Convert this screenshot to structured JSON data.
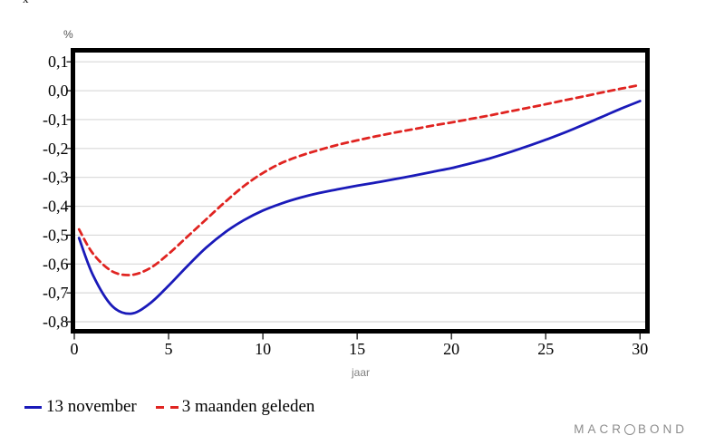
{
  "page": {
    "background": "#ffffff",
    "top_glyph": "x"
  },
  "chart_data": {
    "type": "line",
    "title": "",
    "ylabel_unit": "%",
    "xlabel": "jaar",
    "grid": true,
    "legend_position": "bottom-left",
    "xlim": [
      0,
      30.3
    ],
    "ylim": [
      -0.825,
      0.132
    ],
    "x_ticks": [
      0,
      5,
      10,
      15,
      20,
      25,
      30
    ],
    "y_ticks": [
      "0,1",
      "0,0",
      "-0,1",
      "-0,2",
      "-0,3",
      "-0,4",
      "-0,5",
      "-0,6",
      "-0,7",
      "-0,8"
    ],
    "y_tick_values": [
      0.1,
      0.0,
      -0.1,
      -0.2,
      -0.3,
      -0.4,
      -0.5,
      -0.6,
      -0.7,
      -0.8
    ],
    "x": [
      0.25,
      1,
      2,
      3,
      4,
      5,
      6,
      7,
      8,
      9,
      10,
      11,
      12,
      13,
      14,
      15,
      16,
      17,
      18,
      19,
      20,
      21,
      22,
      23,
      24,
      25,
      26,
      27,
      28,
      29,
      30
    ],
    "series": [
      {
        "name": "13 november",
        "style": "solid",
        "color": "#1a1ab9",
        "values": [
          -0.51,
          -0.64,
          -0.745,
          -0.772,
          -0.737,
          -0.675,
          -0.607,
          -0.543,
          -0.49,
          -0.448,
          -0.415,
          -0.39,
          -0.37,
          -0.354,
          -0.341,
          -0.329,
          -0.318,
          -0.306,
          -0.294,
          -0.281,
          -0.268,
          -0.252,
          -0.235,
          -0.215,
          -0.193,
          -0.17,
          -0.145,
          -0.118,
          -0.09,
          -0.062,
          -0.036
        ]
      },
      {
        "name": "3 maanden geleden",
        "style": "dashed",
        "color": "#e02421",
        "values": [
          -0.48,
          -0.565,
          -0.625,
          -0.638,
          -0.615,
          -0.565,
          -0.505,
          -0.445,
          -0.385,
          -0.33,
          -0.285,
          -0.25,
          -0.225,
          -0.205,
          -0.187,
          -0.172,
          -0.158,
          -0.145,
          -0.133,
          -0.121,
          -0.11,
          -0.098,
          -0.086,
          -0.073,
          -0.06,
          -0.047,
          -0.033,
          -0.02,
          -0.006,
          0.007,
          0.02
        ]
      }
    ],
    "colors": {
      "grid": "#d8d8d8",
      "frame": "#000000",
      "tick": "#000000"
    }
  },
  "branding": {
    "logo_prefix": "MACR",
    "logo_suffix": "BOND"
  }
}
